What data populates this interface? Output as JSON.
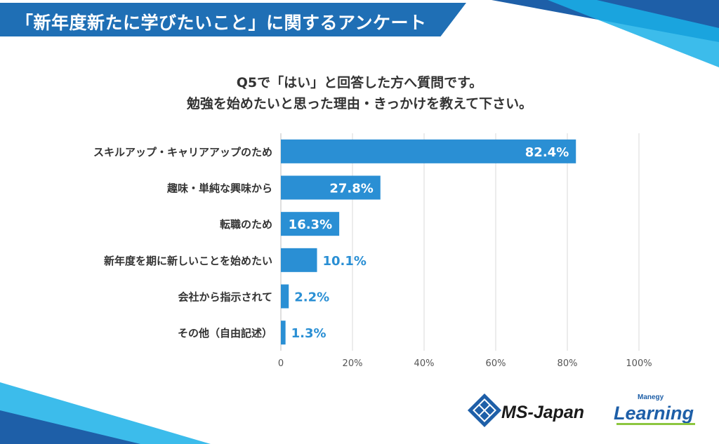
{
  "header": {
    "title": "「新年度新たに学びたいこと」に関するアンケート"
  },
  "question": {
    "line1": "Q5で「はい」と回答した方へ質問です。",
    "line2": "勉強を始めたいと思った理由・きっかけを教えて下さい。"
  },
  "chart_data": {
    "type": "bar",
    "orientation": "horizontal",
    "categories": [
      "スキルアップ・キャリアアップのため",
      "趣味・単純な興味から",
      "転職のため",
      "新年度を期に新しいことを始めたい",
      "会社から指示されて",
      "その他（自由記述）"
    ],
    "values": [
      82.4,
      27.8,
      16.3,
      10.1,
      2.2,
      1.3
    ],
    "value_labels": [
      "82.4%",
      "27.8%",
      "16.3%",
      "10.1%",
      "2.2%",
      "1.3%"
    ],
    "xlim": [
      0,
      100
    ],
    "xticks": [
      "0",
      "20%",
      "40%",
      "60%",
      "80%",
      "100%"
    ],
    "grid": true,
    "bar_color": "#2a8fd4",
    "label_inside_color": "#ffffff",
    "label_outside_color": "#2a8fd4"
  },
  "footer": {
    "logo1_text": "MS-Japan",
    "logo2_small": "Manegy",
    "logo2_text": "Learning"
  },
  "colors": {
    "banner": "#1f6fb5",
    "accent_light": "#1ab0e8",
    "accent_dark": "#1e5fa8"
  }
}
